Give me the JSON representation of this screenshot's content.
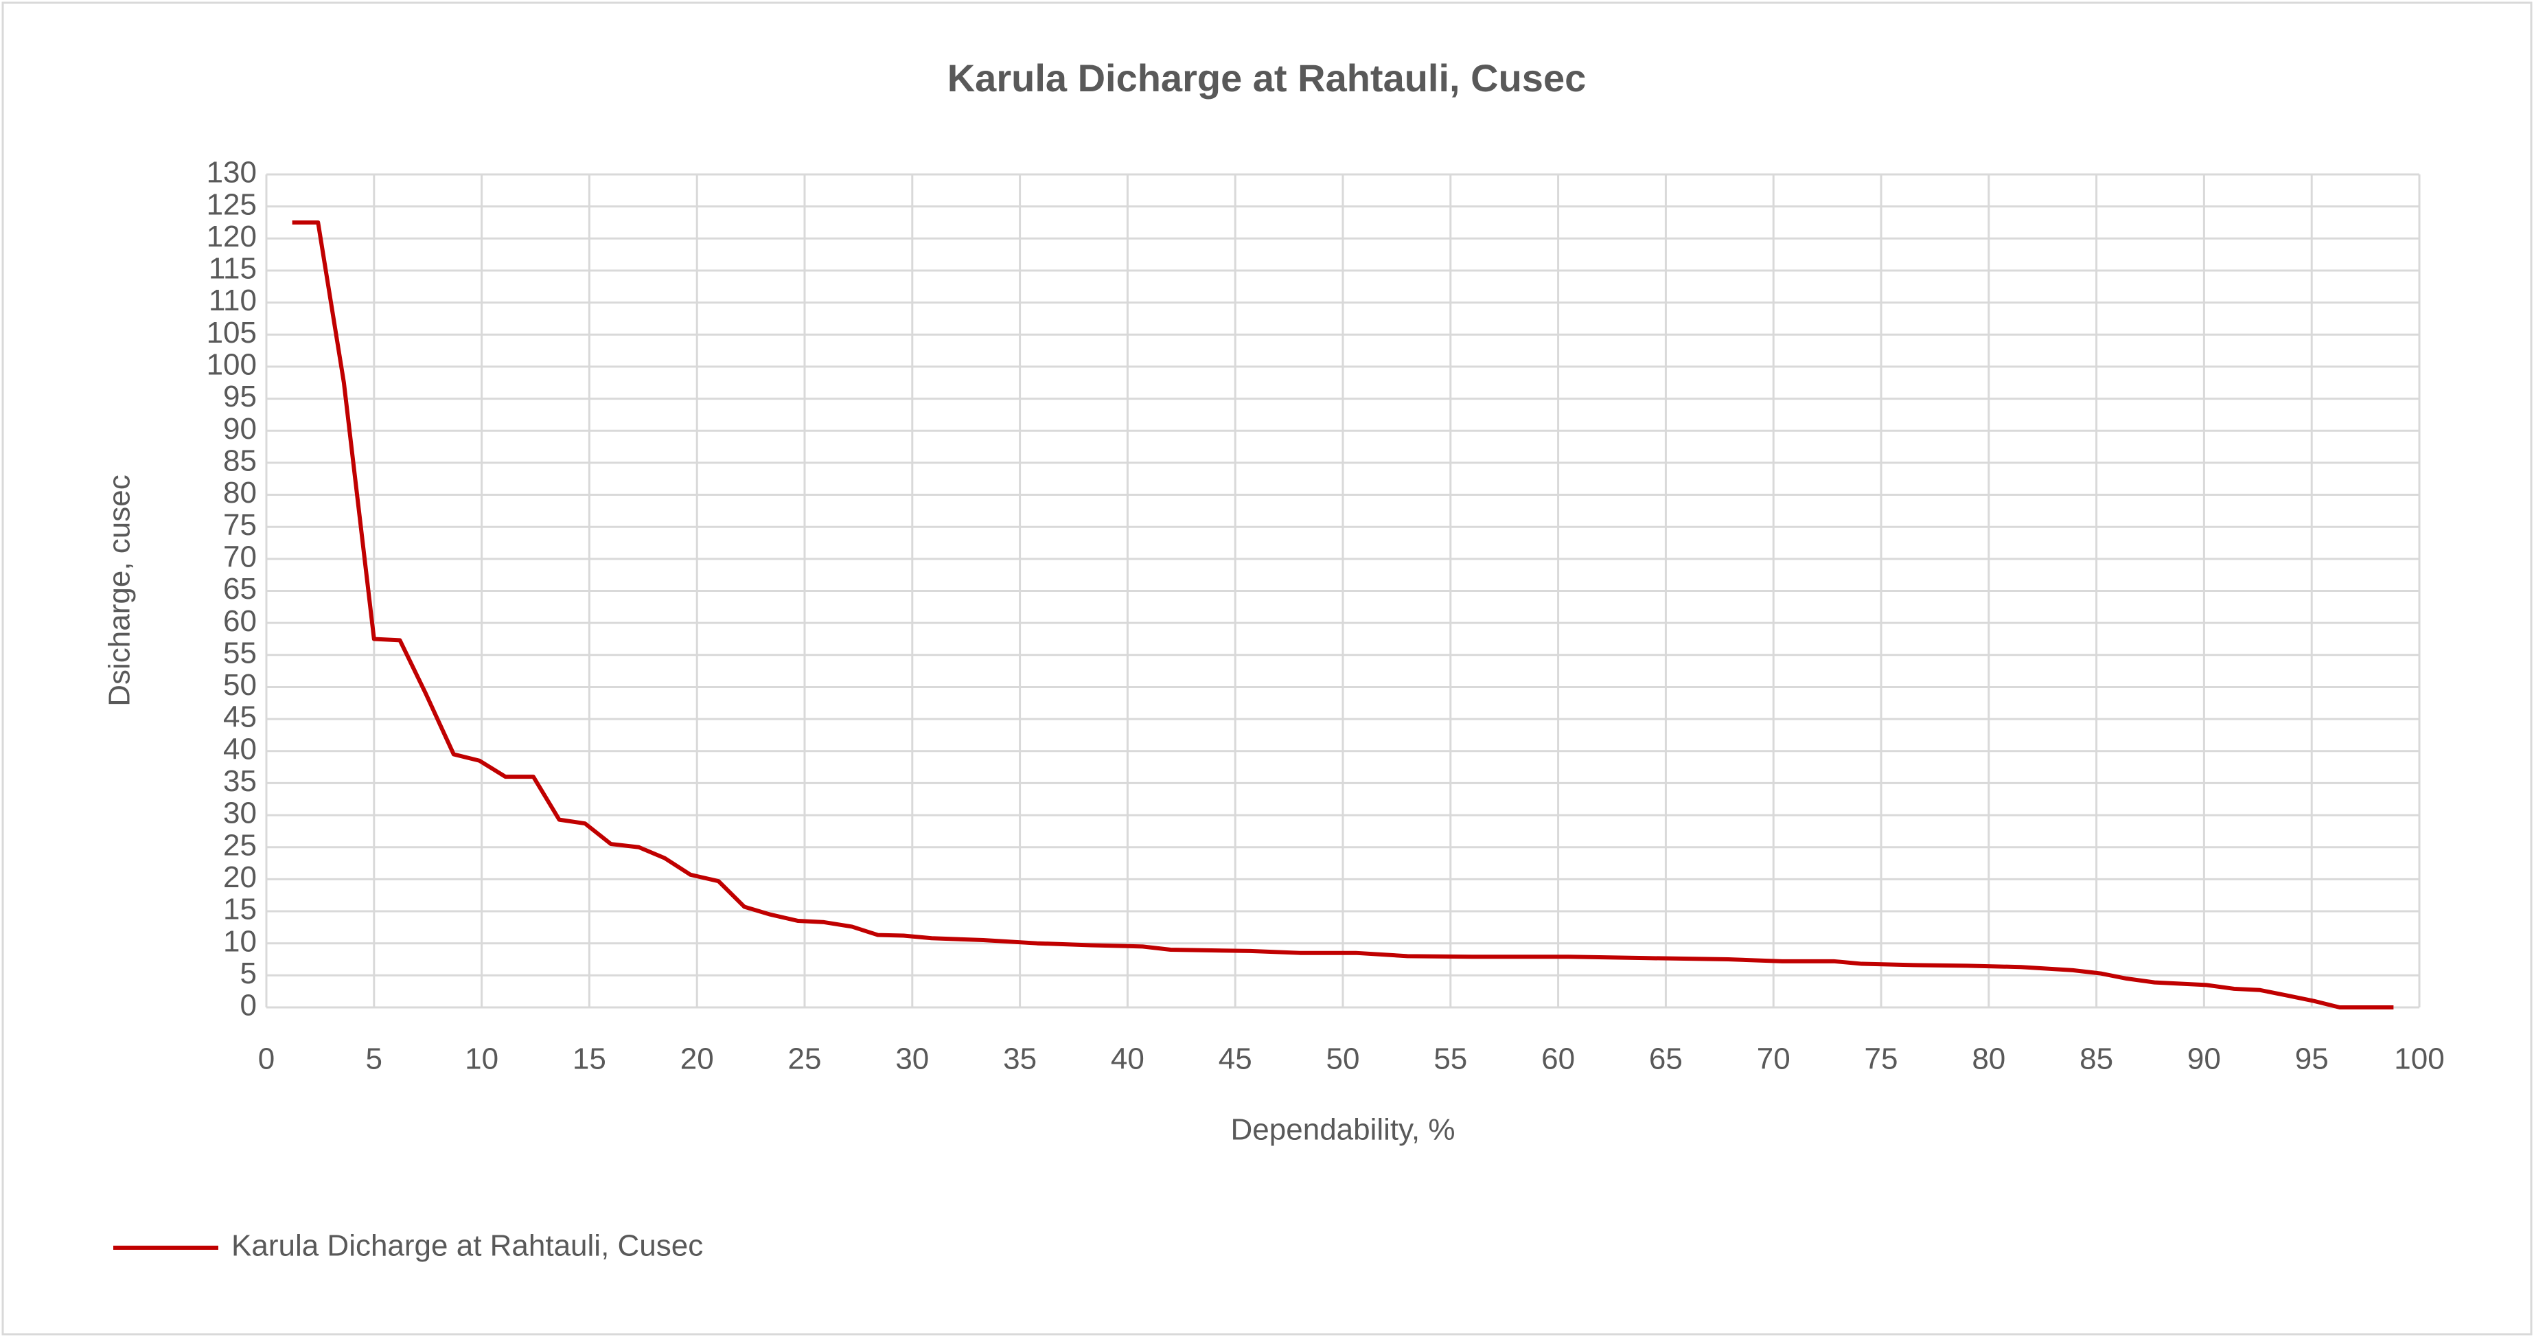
{
  "chart_data": {
    "type": "line",
    "title": "Karula Dicharge at Rahtauli, Cusec",
    "x_label": "Dependability, %",
    "y_label": "Dsicharge, cusec",
    "x": [
      1.2,
      2.4,
      3.6,
      5,
      6.2,
      7.4,
      8.7,
      9.9,
      11.1,
      12.4,
      13.6,
      14.8,
      16,
      17.3,
      18.5,
      19.7,
      21,
      22.2,
      23.4,
      24.7,
      25.9,
      27.2,
      28.4,
      29.6,
      30.9,
      33.3,
      35.8,
      38.3,
      40.7,
      42,
      45.7,
      48,
      50.6,
      53,
      56,
      60.5,
      64,
      67.9,
      70.4,
      72.8,
      74.1,
      76.5,
      79,
      81.5,
      83.9,
      85.2,
      86.4,
      87.7,
      88.9,
      90.1,
      91.4,
      92.6,
      93.8,
      95.1,
      96.3,
      97.5,
      98.8
    ],
    "series": [
      {
        "name": "Karula Dicharge at Rahtauli, Cusec",
        "color": "#c00000",
        "values": [
          122.5,
          122.5,
          97.5,
          57.5,
          57.3,
          49,
          39.5,
          38.5,
          36,
          36,
          29.3,
          28.7,
          25.5,
          25,
          23.3,
          20.7,
          19.7,
          15.7,
          14.5,
          13.5,
          13.3,
          12.6,
          11.3,
          11.2,
          10.8,
          10.5,
          10,
          9.7,
          9.5,
          9,
          8.8,
          8.5,
          8.5,
          8,
          7.9,
          7.9,
          7.7,
          7.5,
          7.2,
          7.2,
          6.8,
          6.6,
          6.5,
          6.3,
          5.8,
          5.3,
          4.5,
          3.9,
          3.7,
          3.5,
          2.9,
          2.7,
          1.9,
          1,
          0,
          0,
          0
        ]
      }
    ],
    "xlim": [
      0,
      100
    ],
    "xticks": [
      0,
      5,
      10,
      15,
      20,
      25,
      30,
      35,
      40,
      45,
      50,
      55,
      60,
      65,
      70,
      75,
      80,
      85,
      90,
      95,
      100
    ],
    "ylim": [
      0,
      130
    ],
    "yticks": [
      0,
      5,
      10,
      15,
      20,
      25,
      30,
      35,
      40,
      45,
      50,
      55,
      60,
      65,
      70,
      75,
      80,
      85,
      90,
      95,
      100,
      105,
      110,
      115,
      120,
      125,
      130
    ],
    "grid": true,
    "legend": "bottom-left"
  }
}
